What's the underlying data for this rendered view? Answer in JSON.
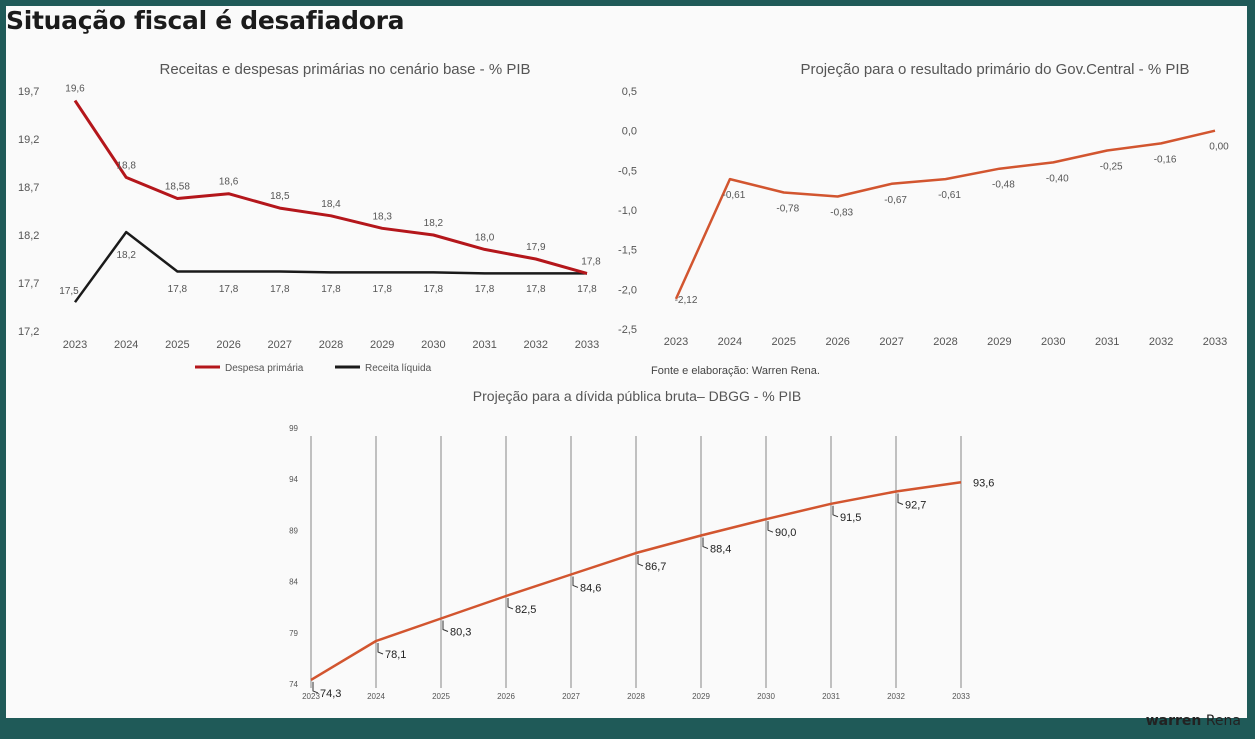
{
  "slide": {
    "title": "Situação fiscal é desafiadora",
    "brand_bold": "warren",
    "brand_rest": "Rena"
  },
  "colors": {
    "primary_line": "#b4161b",
    "secondary_line": "#1a1a1a",
    "projection_line": "#d2552f",
    "grid": "#999999"
  },
  "chart_data": [
    {
      "type": "line",
      "title": "Receitas e despesas primárias no cenário base - % PIB",
      "categories": [
        "2023",
        "2024",
        "2025",
        "2026",
        "2027",
        "2028",
        "2029",
        "2030",
        "2031",
        "2032",
        "2033"
      ],
      "yticks": [
        "17,2",
        "17,7",
        "18,2",
        "18,7",
        "19,2",
        "19,7"
      ],
      "ylim": [
        17.2,
        19.7
      ],
      "legend_position": "bottom",
      "series": [
        {
          "name": "Despesa primária",
          "values": [
            19.6,
            18.8,
            18.58,
            18.63,
            18.48,
            18.4,
            18.27,
            18.2,
            18.05,
            17.95,
            17.8
          ],
          "labels": [
            "19,6",
            "18,8",
            "18,58",
            "18,6",
            "18,5",
            "18,4",
            "18,3",
            "18,2",
            "18,0",
            "17,9",
            "17,8"
          ]
        },
        {
          "name": "Receita líquida",
          "values": [
            17.5,
            18.23,
            17.82,
            17.82,
            17.82,
            17.81,
            17.81,
            17.81,
            17.8,
            17.8,
            17.8
          ],
          "labels": [
            "17,5",
            "18,2",
            "17,8",
            "17,8",
            "17,8",
            "17,8",
            "17,8",
            "17,8",
            "17,8",
            "17,8",
            "17,8"
          ]
        }
      ]
    },
    {
      "type": "line",
      "title": "Projeção para o resultado primário do Gov.Central  - % PIB",
      "categories": [
        "2023",
        "2024",
        "2025",
        "2026",
        "2027",
        "2028",
        "2029",
        "2030",
        "2031",
        "2032",
        "2033"
      ],
      "yticks": [
        "-2,5",
        "-2,0",
        "-1,5",
        "-1,0",
        "-0,5",
        "0,0",
        "0,5"
      ],
      "ylim": [
        -2.5,
        0.5
      ],
      "series": [
        {
          "values": [
            -2.12,
            -0.61,
            -0.78,
            -0.83,
            -0.67,
            -0.61,
            -0.48,
            -0.4,
            -0.25,
            -0.16,
            0.0
          ],
          "labels": [
            "-2,12",
            "-0,61",
            "-0,78",
            "-0,83",
            "-0,67",
            "-0,61",
            "-0,48",
            "-0,40",
            "-0,25",
            "-0,16",
            "0,00"
          ]
        }
      ],
      "source": "Fonte e elaboração: Warren Rena."
    },
    {
      "type": "line",
      "title": "Projeção para a dívida pública bruta– DBGG - % PIB",
      "categories": [
        "2023",
        "2024",
        "2025",
        "2026",
        "2027",
        "2028",
        "2029",
        "2030",
        "2031",
        "2032",
        "2033"
      ],
      "yticks": [
        "74",
        "79",
        "84",
        "89",
        "94",
        "99"
      ],
      "ylim": [
        74,
        99
      ],
      "series": [
        {
          "values": [
            74.3,
            78.1,
            80.3,
            82.5,
            84.6,
            86.7,
            88.4,
            90.0,
            91.5,
            92.7,
            93.6
          ],
          "labels": [
            "74,3",
            "78,1",
            "80,3",
            "82,5",
            "84,6",
            "86,7",
            "88,4",
            "90,0",
            "91,5",
            "92,7",
            "93,6"
          ]
        }
      ]
    }
  ]
}
